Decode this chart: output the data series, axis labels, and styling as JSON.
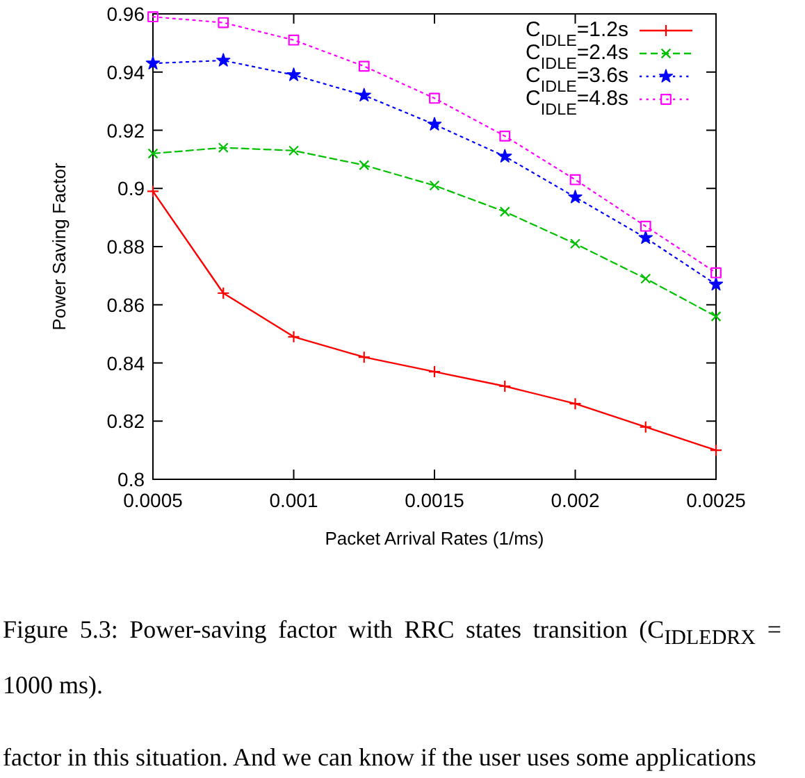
{
  "chart_data": {
    "type": "line",
    "xlabel": "Packet Arrival Rates (1/ms)",
    "ylabel": "Power Saving Factor",
    "x": [
      0.0005,
      0.00075,
      0.001,
      0.00125,
      0.0015,
      0.00175,
      0.002,
      0.00225,
      0.0025
    ],
    "series": [
      {
        "name": "C$_{IDLE}$=1.2s",
        "color": "#ff0000",
        "marker": "cross",
        "line_style": "solid",
        "values": [
          0.899,
          0.864,
          0.849,
          0.842,
          0.837,
          0.832,
          0.826,
          0.818,
          0.81
        ]
      },
      {
        "name": "C$_{IDLE}$=2.4s",
        "color": "#00c000",
        "marker": "x",
        "line_style": "dashed",
        "values": [
          0.912,
          0.914,
          0.913,
          0.908,
          0.901,
          0.892,
          0.881,
          0.869,
          0.856
        ]
      },
      {
        "name": "C$_{IDLE}$=3.6s",
        "color": "#0000ff",
        "marker": "star",
        "line_style": "dotted",
        "values": [
          0.943,
          0.944,
          0.939,
          0.932,
          0.922,
          0.911,
          0.897,
          0.883,
          0.867
        ]
      },
      {
        "name": "C$_{IDLE}$=4.8s",
        "color": "#ff00ff",
        "marker": "square",
        "line_style": "dotted",
        "values": [
          0.959,
          0.957,
          0.951,
          0.942,
          0.931,
          0.918,
          0.903,
          0.887,
          0.871
        ]
      }
    ],
    "xlim": [
      0.0005,
      0.0025
    ],
    "ylim": [
      0.8,
      0.96
    ],
    "xticks": [
      0.0005,
      0.001,
      0.0015,
      0.002,
      0.0025
    ],
    "yticks": [
      0.8,
      0.82,
      0.84,
      0.86,
      0.88,
      0.9,
      0.92,
      0.94,
      0.96
    ],
    "legend": "top right",
    "annotations": [
      "Figure 5.3: Power-saving factor with RRC states transition (C$_{IDLEDRX}$ = 1000 ms).",
      "factor in this situation. And we can know if the user uses some applications"
    ]
  }
}
